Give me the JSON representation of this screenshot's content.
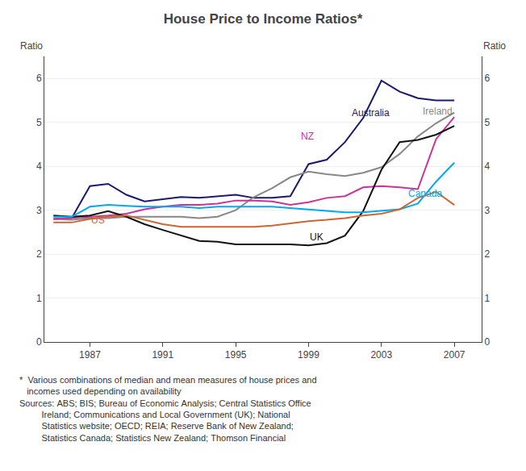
{
  "chart_data": {
    "type": "line",
    "title": "House Price to Income Ratios*",
    "ylabel": "Ratio",
    "y2label": "Ratio",
    "x": [
      1985,
      1986,
      1987,
      1988,
      1989,
      1990,
      1991,
      1992,
      1993,
      1994,
      1995,
      1996,
      1997,
      1998,
      1999,
      2000,
      2001,
      2002,
      2003,
      2004,
      2005,
      2006,
      2007
    ],
    "series": [
      {
        "name": "Australia",
        "color": "#1a1a6e",
        "values": [
          2.8,
          2.82,
          3.55,
          3.6,
          3.35,
          3.2,
          3.25,
          3.3,
          3.28,
          3.32,
          3.35,
          3.28,
          3.28,
          3.32,
          4.05,
          4.15,
          4.55,
          5.1,
          5.95,
          5.7,
          5.55,
          5.5,
          5.5
        ]
      },
      {
        "name": "Ireland",
        "color": "#888888",
        "values": [
          2.8,
          2.78,
          2.82,
          2.82,
          2.85,
          2.85,
          2.85,
          2.85,
          2.82,
          2.85,
          3.0,
          3.3,
          3.5,
          3.75,
          3.88,
          3.82,
          3.78,
          3.85,
          3.98,
          4.28,
          4.68,
          4.98,
          5.22
        ]
      },
      {
        "name": "NZ",
        "color": "#cc3399",
        "values": [
          2.8,
          2.82,
          2.85,
          2.88,
          2.92,
          3.02,
          3.08,
          3.12,
          3.12,
          3.15,
          3.22,
          3.22,
          3.2,
          3.12,
          3.18,
          3.28,
          3.32,
          3.52,
          3.55,
          3.52,
          3.48,
          4.62,
          5.12
        ]
      },
      {
        "name": "UK",
        "color": "#111111",
        "values": [
          2.88,
          2.85,
          2.88,
          2.98,
          2.85,
          2.68,
          2.55,
          2.42,
          2.3,
          2.28,
          2.22,
          2.22,
          2.22,
          2.22,
          2.2,
          2.25,
          2.42,
          2.98,
          3.92,
          4.55,
          4.6,
          4.72,
          4.92
        ]
      },
      {
        "name": "Canada",
        "color": "#00aaee",
        "values": [
          2.85,
          2.85,
          3.08,
          3.12,
          3.1,
          3.08,
          3.08,
          3.08,
          3.05,
          3.08,
          3.08,
          3.08,
          3.08,
          3.05,
          3.02,
          2.98,
          2.95,
          2.95,
          2.98,
          3.02,
          3.15,
          3.65,
          4.08
        ]
      },
      {
        "name": "US",
        "color": "#cc6633",
        "values": [
          2.72,
          2.72,
          2.8,
          2.85,
          2.88,
          2.78,
          2.68,
          2.62,
          2.62,
          2.62,
          2.62,
          2.62,
          2.65,
          2.7,
          2.75,
          2.78,
          2.82,
          2.88,
          2.92,
          3.02,
          3.28,
          3.42,
          3.12
        ]
      }
    ],
    "annotations": [
      {
        "text": "Australia",
        "x": 2001.3,
        "y": 5.05
      },
      {
        "text": "Ireland",
        "x": 2005.2,
        "y": 5.08
      },
      {
        "text": "NZ",
        "x": 1998.5,
        "y": 4.52
      },
      {
        "text": "UK",
        "x": 1999.0,
        "y": 2.22
      },
      {
        "text": "Canada",
        "x": 2004.4,
        "y": 3.22
      },
      {
        "text": "US",
        "x": 1987.0,
        "y": 2.6
      }
    ],
    "footnote": [
      "*  Various combinations of median and mean measures of house prices and",
      "   incomes used depending on availability",
      "Sources: ABS; BIS; Bureau of Economic Analysis; Central Statistics Office",
      "         Ireland; Communications and Local Government (UK); National",
      "         Statistics website; OECD; REIA; Reserve Bank of New Zealand;",
      "         Statistics Canada; Statistics New Zealand; Thomson Financial"
    ],
    "xlim": [
      1984.5,
      2008.5
    ],
    "xticks": [
      1987,
      1991,
      1995,
      1999,
      2003,
      2007
    ],
    "ylim": [
      0,
      6.5
    ],
    "yticks": [
      0,
      1,
      2,
      3,
      4,
      5,
      6
    ],
    "y2lim": [
      0,
      6.5
    ],
    "y2ticks": [
      0,
      1,
      2,
      3,
      4,
      5,
      6
    ],
    "grid": true
  }
}
